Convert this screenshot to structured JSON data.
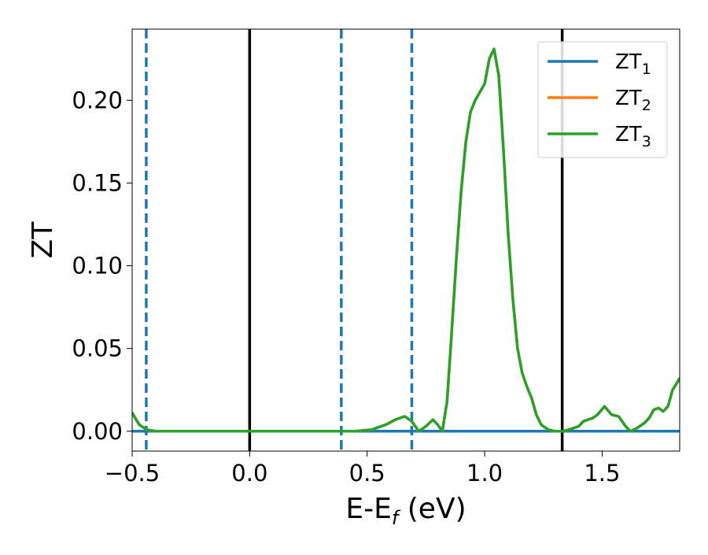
{
  "chart_data": {
    "type": "line",
    "xlabel": "E-E",
    "xlabel_sub": "f",
    "xlabel_unit": " (eV)",
    "ylabel": "ZT",
    "xlim": [
      -0.5,
      1.83
    ],
    "ylim": [
      -0.012,
      0.243
    ],
    "grid": false,
    "legend_position": "top-right",
    "x_ticks": [
      {
        "value": -0.5,
        "label": "−0.5"
      },
      {
        "value": 0.0,
        "label": "0.0"
      },
      {
        "value": 0.5,
        "label": "0.5"
      },
      {
        "value": 1.0,
        "label": "1.0"
      },
      {
        "value": 1.5,
        "label": "1.5"
      }
    ],
    "y_ticks": [
      {
        "value": 0.0,
        "label": "0.00"
      },
      {
        "value": 0.05,
        "label": "0.05"
      },
      {
        "value": 0.1,
        "label": "0.10"
      },
      {
        "value": 0.15,
        "label": "0.15"
      },
      {
        "value": 0.2,
        "label": "0.20"
      }
    ],
    "vertical_lines": [
      {
        "x": -0.44,
        "style": "dashed",
        "color": "#1f77b4"
      },
      {
        "x": 0.0,
        "style": "solid",
        "color": "#000000"
      },
      {
        "x": 0.39,
        "style": "dashed",
        "color": "#1f77b4"
      },
      {
        "x": 0.69,
        "style": "dashed",
        "color": "#1f77b4"
      },
      {
        "x": 1.33,
        "style": "solid",
        "color": "#000000"
      }
    ],
    "series": [
      {
        "name": "ZT",
        "name_sub": "1",
        "color": "#1f77b4",
        "x": [
          -0.5,
          1.83
        ],
        "y": [
          0.0,
          0.0
        ]
      },
      {
        "name": "ZT",
        "name_sub": "2",
        "color": "#ff7f0e",
        "x": [
          -0.5,
          -0.47,
          -0.44,
          -0.4,
          -0.3,
          0.0,
          0.45,
          0.52,
          0.58,
          0.62,
          0.66,
          0.69,
          0.72,
          0.75,
          0.78,
          0.8,
          0.82,
          0.84,
          0.86,
          0.88,
          0.9,
          0.92,
          0.94,
          0.96,
          0.98,
          1.0,
          1.02,
          1.04,
          1.06,
          1.08,
          1.1,
          1.12,
          1.14,
          1.16,
          1.18,
          1.2,
          1.22,
          1.24,
          1.27,
          1.3,
          1.33,
          1.36,
          1.38,
          1.4,
          1.42,
          1.44,
          1.46,
          1.48,
          1.51,
          1.54,
          1.57,
          1.6,
          1.62,
          1.65,
          1.68,
          1.7,
          1.72,
          1.74,
          1.76,
          1.78,
          1.8,
          1.83
        ],
        "y": [
          0.011,
          0.004,
          0.001,
          0.0,
          0.0,
          0.0,
          0.0,
          0.001,
          0.004,
          0.007,
          0.009,
          0.006,
          0.0,
          0.003,
          0.007,
          0.004,
          0.0,
          0.018,
          0.06,
          0.105,
          0.145,
          0.175,
          0.193,
          0.2,
          0.205,
          0.21,
          0.225,
          0.231,
          0.215,
          0.17,
          0.12,
          0.08,
          0.05,
          0.035,
          0.027,
          0.02,
          0.01,
          0.004,
          0.001,
          0.0,
          0.0,
          0.001,
          0.002,
          0.003,
          0.006,
          0.007,
          0.008,
          0.01,
          0.015,
          0.01,
          0.009,
          0.003,
          0.0,
          0.002,
          0.005,
          0.008,
          0.013,
          0.014,
          0.012,
          0.015,
          0.025,
          0.032
        ]
      },
      {
        "name": "ZT",
        "name_sub": "3",
        "color": "#2ca02c",
        "x": [
          -0.5,
          -0.47,
          -0.44,
          -0.4,
          -0.3,
          0.0,
          0.45,
          0.52,
          0.58,
          0.62,
          0.66,
          0.69,
          0.72,
          0.75,
          0.78,
          0.8,
          0.82,
          0.84,
          0.86,
          0.88,
          0.9,
          0.92,
          0.94,
          0.96,
          0.98,
          1.0,
          1.02,
          1.04,
          1.06,
          1.08,
          1.1,
          1.12,
          1.14,
          1.16,
          1.18,
          1.2,
          1.22,
          1.24,
          1.27,
          1.3,
          1.33,
          1.36,
          1.38,
          1.4,
          1.42,
          1.44,
          1.46,
          1.48,
          1.51,
          1.54,
          1.57,
          1.6,
          1.62,
          1.65,
          1.68,
          1.7,
          1.72,
          1.74,
          1.76,
          1.78,
          1.8,
          1.83
        ],
        "y": [
          0.011,
          0.004,
          0.001,
          0.0,
          0.0,
          0.0,
          0.0,
          0.001,
          0.004,
          0.007,
          0.009,
          0.006,
          0.0,
          0.003,
          0.007,
          0.004,
          0.0,
          0.018,
          0.06,
          0.105,
          0.145,
          0.175,
          0.193,
          0.2,
          0.205,
          0.21,
          0.225,
          0.231,
          0.215,
          0.17,
          0.12,
          0.08,
          0.05,
          0.035,
          0.027,
          0.02,
          0.01,
          0.004,
          0.001,
          0.0,
          0.0,
          0.001,
          0.002,
          0.003,
          0.006,
          0.007,
          0.008,
          0.01,
          0.015,
          0.01,
          0.009,
          0.003,
          0.0,
          0.002,
          0.005,
          0.008,
          0.013,
          0.014,
          0.012,
          0.015,
          0.025,
          0.032
        ]
      }
    ]
  }
}
